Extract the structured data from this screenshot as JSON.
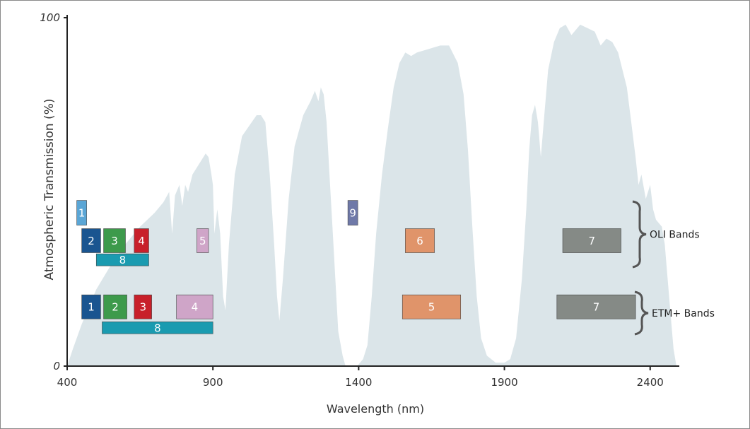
{
  "chart_data": {
    "type": "area",
    "title": "",
    "xlabel": "Wavelength (nm)",
    "ylabel": "Atmospheric Transmission (%)",
    "xlim": [
      400,
      2500
    ],
    "ylim": [
      0,
      100
    ],
    "x_ticks": [
      "400",
      "900",
      "1400",
      "1900",
      "2400"
    ],
    "y_ticks": [
      "0",
      "100"
    ],
    "colors": {
      "transmission": "#dbe5e9",
      "axis": "#222222"
    },
    "series": [
      {
        "points": [
          [
            400,
            0
          ],
          [
            420,
            5
          ],
          [
            450,
            12
          ],
          [
            500,
            22
          ],
          [
            550,
            29
          ],
          [
            600,
            35
          ],
          [
            650,
            40
          ],
          [
            700,
            44
          ],
          [
            730,
            47
          ],
          [
            750,
            50
          ],
          [
            760,
            38
          ],
          [
            770,
            49
          ],
          [
            785,
            52
          ],
          [
            795,
            46
          ],
          [
            805,
            52
          ],
          [
            815,
            50
          ],
          [
            830,
            55
          ],
          [
            845,
            57
          ],
          [
            860,
            59
          ],
          [
            875,
            61
          ],
          [
            885,
            60
          ],
          [
            895,
            55
          ],
          [
            900,
            52
          ],
          [
            905,
            38
          ],
          [
            915,
            45
          ],
          [
            925,
            38
          ],
          [
            935,
            20
          ],
          [
            943,
            16
          ],
          [
            955,
            35
          ],
          [
            975,
            55
          ],
          [
            1000,
            66
          ],
          [
            1025,
            69
          ],
          [
            1050,
            72
          ],
          [
            1065,
            72
          ],
          [
            1080,
            70
          ],
          [
            1095,
            55
          ],
          [
            1110,
            35
          ],
          [
            1120,
            20
          ],
          [
            1128,
            13
          ],
          [
            1140,
            25
          ],
          [
            1160,
            48
          ],
          [
            1180,
            63
          ],
          [
            1210,
            72
          ],
          [
            1235,
            76
          ],
          [
            1250,
            79
          ],
          [
            1262,
            76
          ],
          [
            1270,
            80
          ],
          [
            1280,
            78
          ],
          [
            1290,
            70
          ],
          [
            1300,
            55
          ],
          [
            1310,
            40
          ],
          [
            1320,
            25
          ],
          [
            1330,
            10
          ],
          [
            1345,
            3
          ],
          [
            1355,
            0
          ],
          [
            1370,
            0
          ],
          [
            1380,
            0
          ],
          [
            1395,
            0
          ],
          [
            1415,
            2
          ],
          [
            1430,
            6
          ],
          [
            1445,
            20
          ],
          [
            1460,
            38
          ],
          [
            1480,
            55
          ],
          [
            1500,
            68
          ],
          [
            1520,
            80
          ],
          [
            1540,
            87
          ],
          [
            1560,
            90
          ],
          [
            1580,
            89
          ],
          [
            1600,
            90
          ],
          [
            1640,
            91
          ],
          [
            1680,
            92
          ],
          [
            1710,
            92
          ],
          [
            1740,
            87
          ],
          [
            1760,
            78
          ],
          [
            1775,
            62
          ],
          [
            1790,
            40
          ],
          [
            1805,
            20
          ],
          [
            1820,
            8
          ],
          [
            1840,
            3
          ],
          [
            1870,
            1
          ],
          [
            1900,
            1
          ],
          [
            1920,
            2
          ],
          [
            1940,
            8
          ],
          [
            1960,
            25
          ],
          [
            1975,
            45
          ],
          [
            1985,
            62
          ],
          [
            1995,
            72
          ],
          [
            2005,
            75
          ],
          [
            2015,
            70
          ],
          [
            2025,
            60
          ],
          [
            2035,
            70
          ],
          [
            2050,
            85
          ],
          [
            2070,
            93
          ],
          [
            2090,
            97
          ],
          [
            2110,
            98
          ],
          [
            2130,
            95
          ],
          [
            2160,
            98
          ],
          [
            2185,
            97
          ],
          [
            2210,
            96
          ],
          [
            2230,
            92
          ],
          [
            2250,
            94
          ],
          [
            2270,
            93
          ],
          [
            2290,
            90
          ],
          [
            2305,
            85
          ],
          [
            2320,
            80
          ],
          [
            2335,
            70
          ],
          [
            2350,
            60
          ],
          [
            2360,
            52
          ],
          [
            2370,
            55
          ],
          [
            2385,
            48
          ],
          [
            2400,
            52
          ],
          [
            2410,
            45
          ],
          [
            2420,
            42
          ],
          [
            2440,
            40
          ],
          [
            2450,
            35
          ],
          [
            2460,
            25
          ],
          [
            2470,
            15
          ],
          [
            2480,
            5
          ],
          [
            2490,
            0
          ]
        ]
      }
    ],
    "band_groups": [
      {
        "label": "OLI Bands",
        "bands": [
          {
            "label": "1",
            "x0": 433,
            "x1": 453,
            "y": 44,
            "color": "#5aa6d6"
          },
          {
            "label": "2",
            "x0": 450,
            "x1": 515,
            "y": 36,
            "color": "#1a5590"
          },
          {
            "label": "3",
            "x0": 525,
            "x1": 600,
            "y": 36,
            "color": "#3d9a4b"
          },
          {
            "label": "4",
            "x0": 630,
            "x1": 680,
            "y": 36,
            "color": "#c8202a"
          },
          {
            "label": "5",
            "x0": 845,
            "x1": 885,
            "y": 36,
            "color": "#cfa5c8"
          },
          {
            "label": "8",
            "x0": 500,
            "x1": 680,
            "y": 30.5,
            "color": "#1a9bb0"
          },
          {
            "label": "9",
            "x0": 1363,
            "x1": 1384,
            "y": 44,
            "color": "#6f79a8"
          },
          {
            "label": "6",
            "x0": 1560,
            "x1": 1660,
            "y": 36,
            "color": "#e0946a"
          },
          {
            "label": "7",
            "x0": 2100,
            "x1": 2300,
            "y": 36,
            "color": "#858a86"
          }
        ]
      },
      {
        "label": "ETM+ Bands",
        "bands": [
          {
            "label": "1",
            "x0": 450,
            "x1": 515,
            "y": 17,
            "color": "#1a5590"
          },
          {
            "label": "2",
            "x0": 525,
            "x1": 605,
            "y": 17,
            "color": "#3d9a4b"
          },
          {
            "label": "3",
            "x0": 630,
            "x1": 690,
            "y": 17,
            "color": "#c8202a"
          },
          {
            "label": "4",
            "x0": 775,
            "x1": 900,
            "y": 17,
            "color": "#cfa5c8"
          },
          {
            "label": "8",
            "x0": 520,
            "x1": 900,
            "y": 11,
            "color": "#1a9bb0"
          },
          {
            "label": "5",
            "x0": 1550,
            "x1": 1750,
            "y": 17,
            "color": "#e0946a"
          },
          {
            "label": "7",
            "x0": 2080,
            "x1": 2350,
            "y": 17,
            "color": "#858a86"
          }
        ]
      }
    ]
  }
}
